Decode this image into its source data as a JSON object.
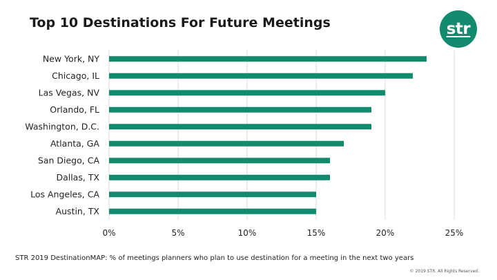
{
  "header": {
    "title": "Top 10 Destinations For Future Meetings",
    "logo_text": "str"
  },
  "colors": {
    "bar": "#128a6e",
    "grid": "#d9d9d9",
    "label": "#222222"
  },
  "chart_data": {
    "type": "bar",
    "orientation": "horizontal",
    "title": "Top 10 Destinations For Future Meetings",
    "categories": [
      "New York, NY",
      "Chicago, IL",
      "Las Vegas, NV",
      "Orlando, FL",
      "Washington, D.C.",
      "Atlanta, GA",
      "San Diego, CA",
      "Dallas, TX",
      "Los Angeles, CA",
      "Austin, TX"
    ],
    "values": [
      23,
      22,
      20,
      19,
      19,
      17,
      16,
      16,
      15,
      15
    ],
    "xlim": [
      0,
      25
    ],
    "xticks": [
      0,
      5,
      10,
      15,
      20,
      25
    ],
    "xtick_labels": [
      "0%",
      "5%",
      "10%",
      "15%",
      "20%",
      "25%"
    ],
    "grid": "vertical",
    "legend": "none"
  },
  "footer": {
    "source_note": "STR 2019 DestinationMAP: % of meetings planners who plan to use destination for a meeting in the next two years",
    "copyright": "© 2019 STR. All Rights Reserved."
  }
}
